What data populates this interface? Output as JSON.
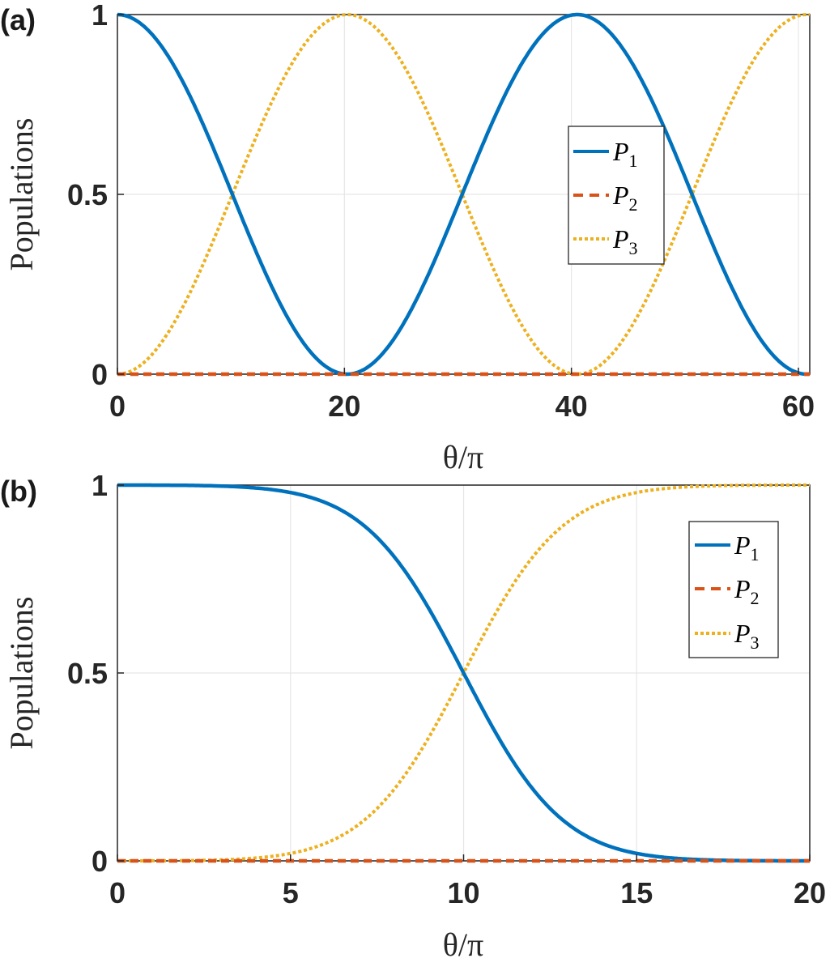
{
  "colors": {
    "P1": "#0072bd",
    "P2": "#d95319",
    "P3": "#edb120",
    "grid": "#e6e6e6",
    "axis": "#262626"
  },
  "panels": {
    "a": {
      "label": "(a)",
      "ylabel": "Populations",
      "xlabel": "θ/π",
      "xticks": [
        "0",
        "20",
        "40",
        "60"
      ],
      "yticks": [
        "0",
        "0.5",
        "1"
      ],
      "legend": [
        {
          "name": "P",
          "sub": "1"
        },
        {
          "name": "P",
          "sub": "2"
        },
        {
          "name": "P",
          "sub": "3"
        }
      ]
    },
    "b": {
      "label": "(b)",
      "ylabel": "Populations",
      "xlabel": "θ/π",
      "xticks": [
        "0",
        "5",
        "10",
        "15",
        "20"
      ],
      "yticks": [
        "0",
        "0.5",
        "1"
      ],
      "legend": [
        {
          "name": "P",
          "sub": "1"
        },
        {
          "name": "P",
          "sub": "2"
        },
        {
          "name": "P",
          "sub": "3"
        }
      ]
    }
  },
  "chart_data": [
    {
      "type": "line",
      "title": "(a)",
      "xlabel": "θ/π",
      "ylabel": "Populations",
      "xlim": [
        0,
        61
      ],
      "ylim": [
        0,
        1
      ],
      "grid": true,
      "legend_position": "right-center",
      "x": [
        0,
        5,
        10,
        15,
        20,
        25,
        30,
        35,
        40,
        45,
        50,
        55,
        60
      ],
      "series": [
        {
          "name": "P1",
          "style": "solid",
          "values": [
            1.0,
            0.86,
            0.51,
            0.16,
            0.0,
            0.13,
            0.47,
            0.84,
            1.0,
            0.88,
            0.53,
            0.17,
            0.0
          ]
        },
        {
          "name": "P2",
          "style": "dashed",
          "values": [
            0,
            0,
            0,
            0,
            0,
            0,
            0,
            0,
            0,
            0,
            0,
            0,
            0
          ]
        },
        {
          "name": "P3",
          "style": "dotted",
          "values": [
            0.0,
            0.14,
            0.49,
            0.84,
            1.0,
            0.87,
            0.53,
            0.16,
            0.0,
            0.12,
            0.47,
            0.83,
            1.0
          ]
        }
      ]
    },
    {
      "type": "line",
      "title": "(b)",
      "xlabel": "θ/π",
      "ylabel": "Populations",
      "xlim": [
        0,
        20
      ],
      "ylim": [
        0,
        1
      ],
      "grid": true,
      "legend_position": "upper-right",
      "x": [
        0,
        2.5,
        5,
        7.5,
        10,
        12.5,
        15,
        17.5,
        20
      ],
      "series": [
        {
          "name": "P1",
          "style": "solid",
          "values": [
            1.0,
            0.995,
            0.96,
            0.8,
            0.5,
            0.2,
            0.04,
            0.005,
            0.0
          ]
        },
        {
          "name": "P2",
          "style": "dashed",
          "values": [
            0,
            0,
            0,
            0,
            0,
            0,
            0,
            0,
            0
          ]
        },
        {
          "name": "P3",
          "style": "dotted",
          "values": [
            0.0,
            0.005,
            0.04,
            0.2,
            0.5,
            0.8,
            0.96,
            0.995,
            1.0
          ]
        }
      ]
    }
  ]
}
